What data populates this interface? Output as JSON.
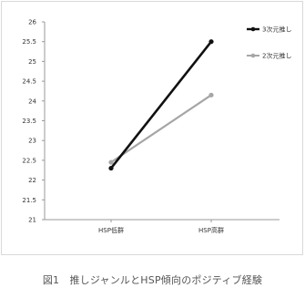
{
  "chart_data": {
    "type": "line",
    "categories": [
      "HSP低群",
      "HSP高群"
    ],
    "series": [
      {
        "name": "3次元推し",
        "values": [
          22.3,
          25.5
        ],
        "color": "#111111"
      },
      {
        "name": "2次元推し",
        "values": [
          22.45,
          24.15
        ],
        "color": "#a6a6a6"
      }
    ],
    "ylim": [
      21,
      26
    ],
    "yticks": [
      "26",
      "25.5",
      "25",
      "24.5",
      "24",
      "23.5",
      "23",
      "22.5",
      "22",
      "21.5",
      "21"
    ],
    "grid": false,
    "legend": "top-right"
  },
  "caption": "図1　推しジャンルとHSP傾向のポジティブ経験"
}
